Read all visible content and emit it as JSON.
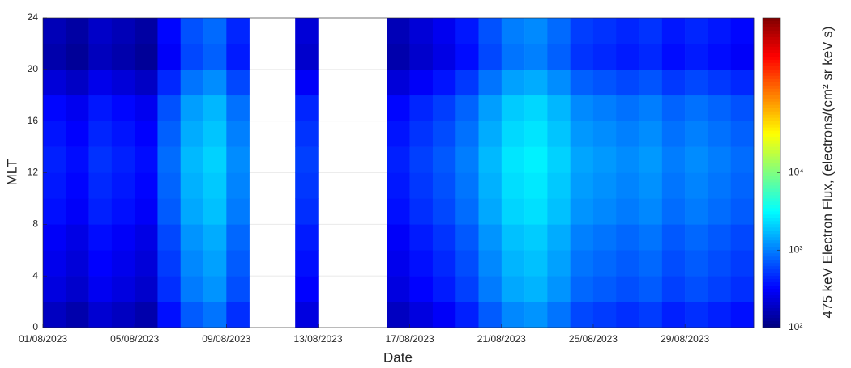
{
  "chart_data": {
    "type": "heatmap",
    "xlabel": "Date",
    "ylabel": "MLT",
    "colorbar_label": "475 keV Electron Flux, (electrons/(cm² sr keV s)",
    "colormap": "jet",
    "color_scale": "log",
    "grid": true,
    "x_bins": [
      1,
      2,
      3,
      4,
      5,
      6,
      7,
      8,
      9,
      10,
      11,
      12,
      13,
      14,
      15,
      16,
      17,
      18,
      19,
      20,
      21,
      22,
      23,
      24,
      25,
      26,
      27,
      28,
      29,
      30,
      31,
      32
    ],
    "y_bins": [
      0,
      2,
      4,
      6,
      8,
      10,
      12,
      14,
      16,
      18,
      20,
      22,
      24
    ],
    "xlim": [
      1,
      32
    ],
    "xticks": [
      {
        "value": 1,
        "label": "01/08/2023"
      },
      {
        "value": 5,
        "label": "05/08/2023"
      },
      {
        "value": 9,
        "label": "09/08/2023"
      },
      {
        "value": 13,
        "label": "13/08/2023"
      },
      {
        "value": 17,
        "label": "17/08/2023"
      },
      {
        "value": 21,
        "label": "21/08/2023"
      },
      {
        "value": 25,
        "label": "25/08/2023"
      },
      {
        "value": 29,
        "label": "29/08/2023"
      }
    ],
    "ylim": [
      0,
      24
    ],
    "yticks": [
      0,
      4,
      8,
      12,
      16,
      20,
      24
    ],
    "clim": [
      100,
      1000000
    ],
    "cticks": [
      {
        "value": 100,
        "label": "10²"
      },
      {
        "value": 1000,
        "label": "10³"
      },
      {
        "value": 10000,
        "label": "10⁴"
      }
    ],
    "z": [
      [
        180,
        150,
        210,
        180,
        150,
        360,
        720,
        900,
        480,
        null,
        null,
        240,
        null,
        null,
        null,
        180,
        240,
        300,
        420,
        720,
        1080,
        1200,
        900,
        600,
        540,
        480,
        540,
        420,
        480,
        420,
        360
      ],
      [
        240,
        200,
        280,
        240,
        200,
        480,
        960,
        1200,
        640,
        null,
        null,
        320,
        null,
        null,
        null,
        240,
        320,
        400,
        560,
        960,
        1440,
        1600,
        1200,
        800,
        720,
        640,
        720,
        560,
        640,
        560,
        480
      ],
      [
        270,
        225,
        315,
        270,
        225,
        540,
        1080,
        1350,
        720,
        null,
        null,
        360,
        null,
        null,
        null,
        270,
        360,
        450,
        630,
        1080,
        1620,
        1800,
        1350,
        900,
        810,
        720,
        810,
        630,
        720,
        630,
        540
      ],
      [
        300,
        250,
        350,
        300,
        250,
        600,
        1200,
        1500,
        800,
        null,
        null,
        400,
        null,
        null,
        null,
        300,
        400,
        500,
        700,
        1200,
        1800,
        2000,
        1500,
        1000,
        900,
        800,
        900,
        700,
        800,
        700,
        600
      ],
      [
        360,
        300,
        420,
        360,
        300,
        720,
        1440,
        1800,
        960,
        null,
        null,
        480,
        null,
        null,
        null,
        360,
        480,
        600,
        840,
        1440,
        2160,
        2400,
        1800,
        1200,
        1080,
        960,
        1080,
        840,
        960,
        840,
        720
      ],
      [
        390,
        325,
        455,
        390,
        325,
        780,
        1560,
        1950,
        1040,
        null,
        null,
        520,
        null,
        null,
        null,
        390,
        520,
        650,
        910,
        1560,
        2340,
        2600,
        1950,
        1300,
        1170,
        1040,
        1170,
        910,
        1040,
        910,
        780
      ],
      [
        420,
        350,
        490,
        420,
        350,
        840,
        1680,
        2100,
        1120,
        null,
        null,
        560,
        null,
        null,
        null,
        420,
        560,
        700,
        980,
        1680,
        2520,
        2800,
        2100,
        1400,
        1260,
        1120,
        1260,
        980,
        1120,
        980,
        840
      ],
      [
        375,
        313,
        438,
        375,
        313,
        750,
        1500,
        1875,
        1000,
        null,
        null,
        500,
        null,
        null,
        null,
        375,
        500,
        625,
        875,
        1500,
        2250,
        2500,
        1875,
        1250,
        1125,
        1000,
        1125,
        875,
        1000,
        875,
        750
      ],
      [
        330,
        275,
        385,
        330,
        275,
        660,
        1320,
        1650,
        880,
        null,
        null,
        440,
        null,
        null,
        null,
        330,
        440,
        550,
        770,
        1320,
        1980,
        2200,
        1650,
        1100,
        990,
        880,
        990,
        770,
        880,
        770,
        660
      ],
      [
        225,
        188,
        263,
        225,
        188,
        450,
        900,
        1125,
        600,
        null,
        null,
        300,
        null,
        null,
        null,
        225,
        300,
        375,
        525,
        900,
        1350,
        1500,
        1125,
        750,
        675,
        600,
        675,
        525,
        600,
        525,
        450
      ],
      [
        150,
        125,
        175,
        150,
        125,
        300,
        600,
        750,
        400,
        null,
        null,
        200,
        null,
        null,
        null,
        150,
        200,
        250,
        350,
        600,
        900,
        1000,
        750,
        500,
        450,
        400,
        450,
        350,
        400,
        350,
        300
      ],
      [
        165,
        138,
        193,
        165,
        138,
        330,
        660,
        825,
        440,
        null,
        null,
        220,
        null,
        null,
        null,
        165,
        220,
        275,
        385,
        660,
        990,
        1100,
        825,
        550,
        495,
        440,
        495,
        385,
        440,
        385,
        330
      ]
    ]
  }
}
